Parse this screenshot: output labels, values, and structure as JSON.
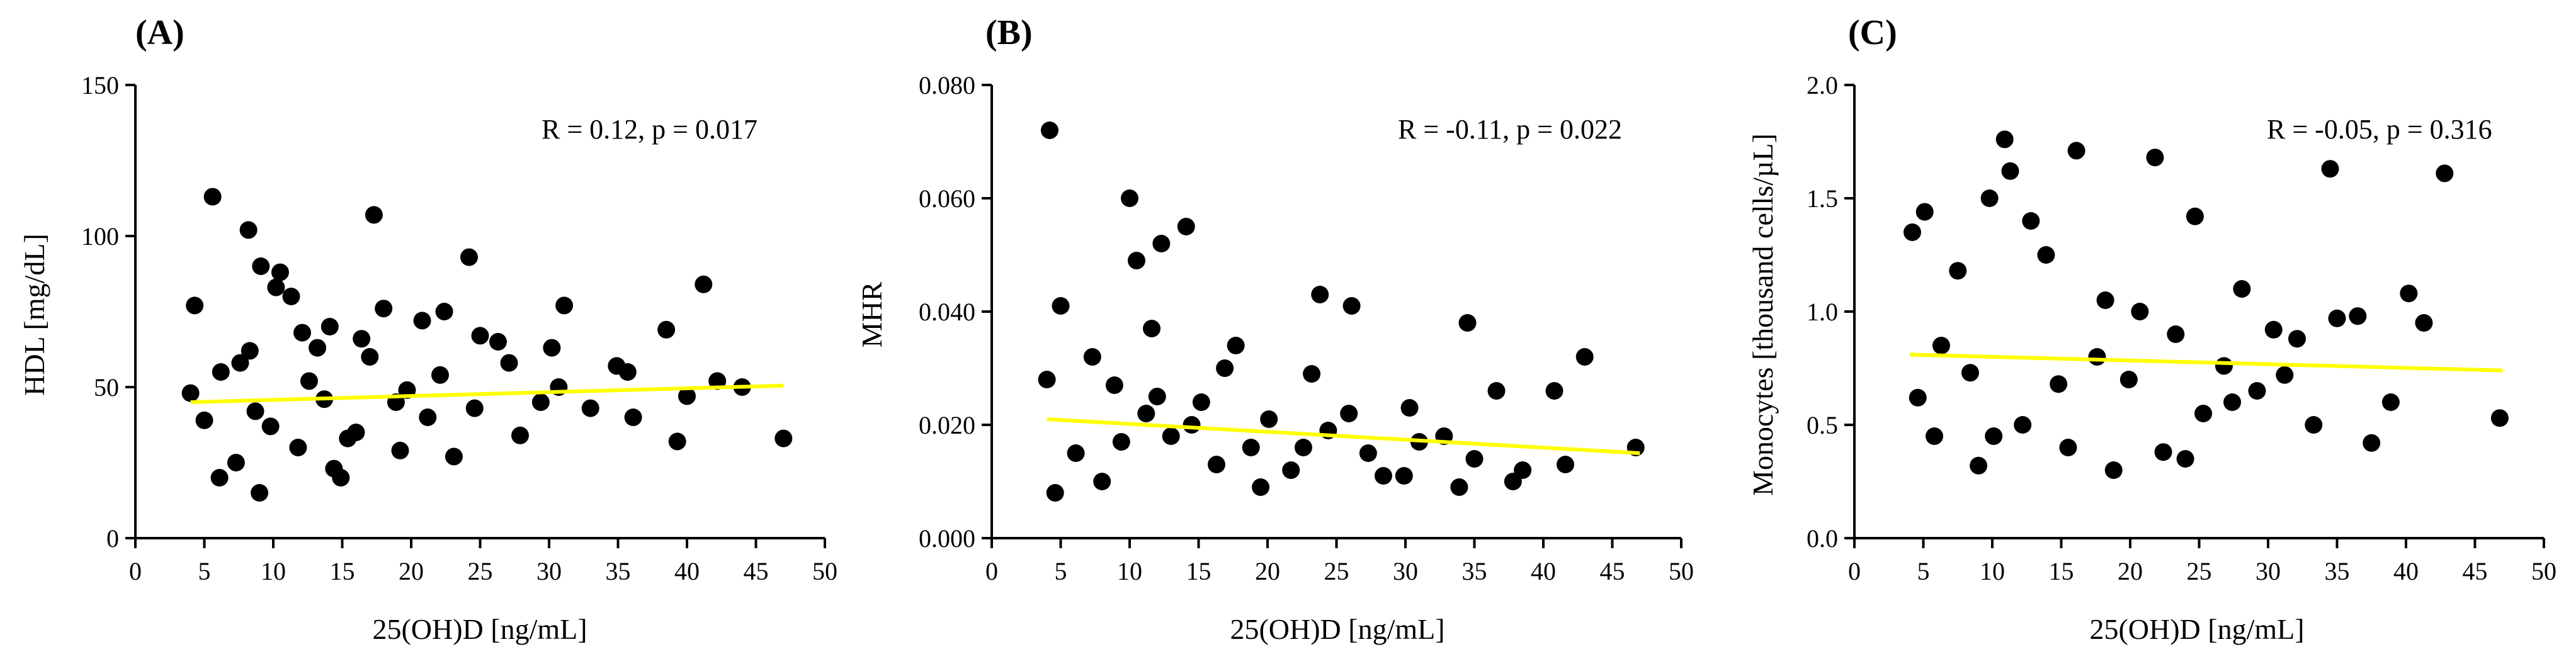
{
  "chart_data": [
    {
      "type": "scatter",
      "panel_label": "(A)",
      "annotation": "R = 0.12, p = 0.017",
      "xlabel": "25(OH)D [ng/mL]",
      "ylabel": "HDL [mg/dL]",
      "xlim": [
        0,
        50
      ],
      "ylim": [
        0,
        150
      ],
      "xticks": [
        0,
        5,
        10,
        15,
        20,
        25,
        30,
        35,
        40,
        45,
        50
      ],
      "yticks": [
        0,
        50,
        100,
        150
      ],
      "xtick_labels": [
        "0",
        "5",
        "10",
        "15",
        "20",
        "25",
        "30",
        "35",
        "40",
        "45",
        "50"
      ],
      "ytick_labels": [
        "0",
        "50",
        "100",
        "150"
      ],
      "trend_line": {
        "x": [
          4,
          47
        ],
        "y": [
          45.0,
          50.5
        ],
        "color": "#ffff00"
      },
      "points": {
        "x": [
          5.6,
          8.2,
          17.3,
          9.1,
          10.2,
          24.2,
          4.3,
          11.3,
          10.5,
          12.1,
          41.2,
          38.5,
          31.1,
          13.2,
          14.1,
          16.4,
          18.0,
          20.8,
          22.4,
          25.0,
          26.3,
          30.2,
          35.7,
          44.0,
          47.0,
          39.3,
          33.0,
          30.7,
          27.9,
          6.1,
          7.3,
          9.0,
          11.8,
          14.9,
          16.0,
          18.9,
          21.2,
          23.1,
          4.0,
          5.0,
          6.2,
          7.6,
          8.7,
          9.8,
          12.6,
          13.7,
          15.4,
          17.0,
          19.7,
          22.1,
          24.6,
          27.1,
          29.4,
          34.9,
          36.1,
          40.0,
          42.2,
          19.2,
          14.4,
          8.3
        ],
        "y": [
          113,
          102,
          107,
          90,
          83,
          93,
          77,
          80,
          88,
          68,
          84,
          69,
          77,
          63,
          70,
          66,
          76,
          72,
          75,
          67,
          65,
          63,
          55,
          50,
          33,
          32,
          43,
          50,
          34,
          20,
          25,
          15,
          30,
          20,
          35,
          45,
          40,
          27,
          48,
          39,
          55,
          58,
          42,
          37,
          52,
          46,
          33,
          60,
          49,
          54,
          43,
          58,
          45,
          57,
          40,
          47,
          52,
          29,
          23,
          62
        ]
      }
    },
    {
      "type": "scatter",
      "panel_label": "(B)",
      "annotation": "R = -0.11, p = 0.022",
      "xlabel": "25(OH)D [ng/mL]",
      "ylabel": "MHR",
      "xlim": [
        0,
        50
      ],
      "ylim": [
        0,
        0.08
      ],
      "xticks": [
        0,
        5,
        10,
        15,
        20,
        25,
        30,
        35,
        40,
        45,
        50
      ],
      "yticks": [
        0,
        0.02,
        0.04,
        0.06,
        0.08
      ],
      "xtick_labels": [
        "0",
        "5",
        "10",
        "15",
        "20",
        "25",
        "30",
        "35",
        "40",
        "45",
        "50"
      ],
      "ytick_labels": [
        "0.000",
        "0.020",
        "0.040",
        "0.060",
        "0.080"
      ],
      "trend_line": {
        "x": [
          4,
          47
        ],
        "y": [
          0.021,
          0.015
        ],
        "color": "#ffff00"
      },
      "points": {
        "x": [
          4.2,
          10.0,
          14.1,
          12.3,
          10.5,
          43.0,
          34.5,
          26.1,
          23.8,
          40.8,
          38.5,
          46.7,
          36.6,
          5.0,
          7.3,
          8.9,
          11.2,
          13.0,
          15.2,
          16.9,
          18.8,
          20.1,
          21.7,
          24.4,
          27.3,
          29.9,
          32.8,
          35.0,
          37.8,
          41.6,
          4.6,
          6.1,
          8.0,
          9.4,
          12.0,
          14.5,
          16.3,
          19.5,
          22.6,
          25.9,
          28.4,
          31.0,
          33.9,
          4.0,
          11.6,
          17.7,
          23.2,
          30.3
        ],
        "y": [
          0.072,
          0.06,
          0.055,
          0.052,
          0.049,
          0.032,
          0.038,
          0.041,
          0.043,
          0.026,
          0.012,
          0.016,
          0.026,
          0.041,
          0.032,
          0.027,
          0.022,
          0.018,
          0.024,
          0.03,
          0.016,
          0.021,
          0.012,
          0.019,
          0.015,
          0.011,
          0.018,
          0.014,
          0.01,
          0.013,
          0.008,
          0.015,
          0.01,
          0.017,
          0.025,
          0.02,
          0.013,
          0.009,
          0.016,
          0.022,
          0.011,
          0.017,
          0.009,
          0.028,
          0.037,
          0.034,
          0.029,
          0.023
        ]
      }
    },
    {
      "type": "scatter",
      "panel_label": "(C)",
      "annotation": "R = -0.05, p = 0.316",
      "xlabel": "25(OH)D [ng/mL]",
      "ylabel": "Monocytes [thousand cells/µL]",
      "xlim": [
        0,
        50
      ],
      "ylim": [
        0,
        2.0
      ],
      "xticks": [
        0,
        5,
        10,
        15,
        20,
        25,
        30,
        35,
        40,
        45,
        50
      ],
      "yticks": [
        0,
        0.5,
        1.0,
        1.5,
        2.0
      ],
      "xtick_labels": [
        "0",
        "5",
        "10",
        "15",
        "20",
        "25",
        "30",
        "35",
        "40",
        "45",
        "50"
      ],
      "ytick_labels": [
        "0.0",
        "0.5",
        "1.0",
        "1.5",
        "2.0"
      ],
      "trend_line": {
        "x": [
          4,
          47
        ],
        "y": [
          0.81,
          0.74
        ],
        "color": "#ffff00"
      },
      "points": {
        "x": [
          10.9,
          16.1,
          21.8,
          11.3,
          34.5,
          42.8,
          4.2,
          5.1,
          9.8,
          12.8,
          24.7,
          40.2,
          41.3,
          46.8,
          37.5,
          35.0,
          36.5,
          30.4,
          28.1,
          7.5,
          13.9,
          18.2,
          20.7,
          23.3,
          26.8,
          32.1,
          38.9,
          6.3,
          8.4,
          14.8,
          17.6,
          19.9,
          25.3,
          29.2,
          33.3,
          4.6,
          10.1,
          15.5,
          22.4,
          27.4,
          5.8,
          9.0,
          12.2,
          18.8,
          24.0,
          31.2
        ],
        "y": [
          1.76,
          1.71,
          1.68,
          1.62,
          1.63,
          1.61,
          1.35,
          1.44,
          1.5,
          1.4,
          1.42,
          1.08,
          0.95,
          0.53,
          0.42,
          0.97,
          0.98,
          0.92,
          1.1,
          1.18,
          1.25,
          1.05,
          1.0,
          0.9,
          0.76,
          0.88,
          0.6,
          0.85,
          0.73,
          0.68,
          0.8,
          0.7,
          0.55,
          0.65,
          0.5,
          0.62,
          0.45,
          0.4,
          0.38,
          0.6,
          0.45,
          0.32,
          0.5,
          0.3,
          0.35,
          0.72
        ]
      }
    }
  ]
}
